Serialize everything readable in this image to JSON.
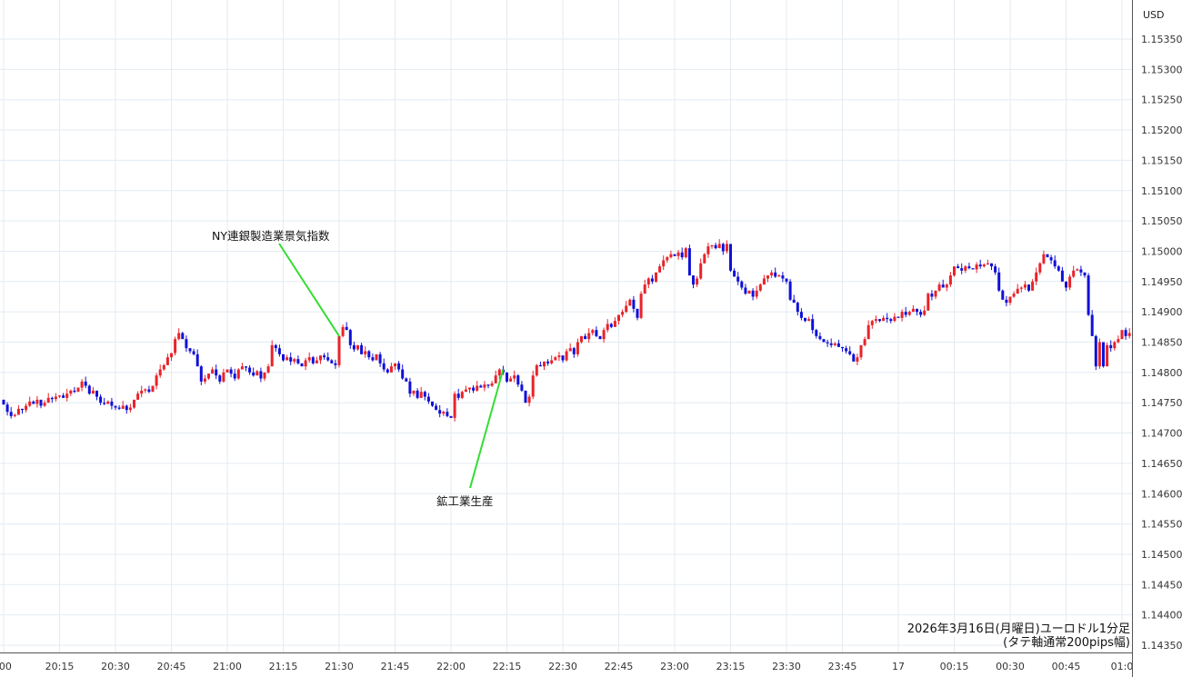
{
  "chart_data": {
    "type": "candlestick",
    "currency_label": "USD",
    "start_time": "20:00",
    "interval_minutes": 1,
    "ylim": [
      1.1435,
      1.1535
    ],
    "y_ticks": [
      "1.15350",
      "1.15300",
      "1.15250",
      "1.15200",
      "1.15150",
      "1.15100",
      "1.15050",
      "1.15000",
      "1.14950",
      "1.14900",
      "1.14850",
      "1.14800",
      "1.14750",
      "1.14700",
      "1.14650",
      "1.14600",
      "1.14550",
      "1.14500",
      "1.14450",
      "1.14400",
      "1.14350"
    ],
    "x_ticks": [
      ":00",
      "20:15",
      "20:30",
      "20:45",
      "21:00",
      "21:15",
      "21:30",
      "21:45",
      "22:00",
      "22:15",
      "22:30",
      "22:45",
      "23:00",
      "23:15",
      "23:30",
      "23:45",
      "17",
      "00:15",
      "00:30",
      "00:45",
      "01:0"
    ],
    "grid": true,
    "up_color": "#e8232a",
    "down_color": "#1010d8",
    "first_open": 1.14755,
    "closes": [
      1.14747,
      1.14735,
      1.14728,
      1.1473,
      1.1474,
      1.14738,
      1.14745,
      1.14752,
      1.14748,
      1.14755,
      1.14745,
      1.1475,
      1.14758,
      1.14756,
      1.1476,
      1.14762,
      1.14758,
      1.14765,
      1.1477,
      1.14768,
      1.14775,
      1.14785,
      1.14778,
      1.14765,
      1.1477,
      1.1476,
      1.1475,
      1.14748,
      1.14752,
      1.14745,
      1.14742,
      1.1474,
      1.14745,
      1.14738,
      1.14742,
      1.14755,
      1.14765,
      1.1477,
      1.14772,
      1.14768,
      1.14778,
      1.14795,
      1.14805,
      1.14812,
      1.14825,
      1.14832,
      1.14855,
      1.14865,
      1.14855,
      1.1484,
      1.14835,
      1.1483,
      1.1481,
      1.14785,
      1.1479,
      1.14798,
      1.14805,
      1.14795,
      1.14785,
      1.148,
      1.14805,
      1.14798,
      1.1479,
      1.14805,
      1.1481,
      1.14808,
      1.148,
      1.14795,
      1.14802,
      1.1479,
      1.148,
      1.1481,
      1.14845,
      1.1484,
      1.1483,
      1.1482,
      1.14825,
      1.14818,
      1.14822,
      1.14815,
      1.1481,
      1.1482,
      1.14825,
      1.14815,
      1.1482,
      1.14828,
      1.14825,
      1.1482,
      1.14815,
      1.14812,
      1.1486,
      1.14875,
      1.1487,
      1.14845,
      1.14838,
      1.14845,
      1.1483,
      1.14835,
      1.14825,
      1.1482,
      1.1483,
      1.14815,
      1.14805,
      1.148,
      1.1481,
      1.14815,
      1.14805,
      1.1479,
      1.14785,
      1.14765,
      1.1477,
      1.14758,
      1.14768,
      1.1476,
      1.14752,
      1.14745,
      1.14738,
      1.14732,
      1.14735,
      1.14728,
      1.14725,
      1.14765,
      1.14758,
      1.14768,
      1.14772,
      1.14775,
      1.1477,
      1.14778,
      1.14775,
      1.1478,
      1.14778,
      1.14782,
      1.14795,
      1.14805,
      1.148,
      1.14785,
      1.1479,
      1.14795,
      1.1478,
      1.1477,
      1.1475,
      1.1476,
      1.14795,
      1.14812,
      1.1481,
      1.14818,
      1.14815,
      1.1482,
      1.14825,
      1.14828,
      1.1482,
      1.14835,
      1.1484,
      1.1483,
      1.1485,
      1.1486,
      1.14855,
      1.14865,
      1.1487,
      1.1486,
      1.14855,
      1.1487,
      1.1488,
      1.14875,
      1.14885,
      1.14895,
      1.149,
      1.1491,
      1.1492,
      1.14905,
      1.1489,
      1.1493,
      1.14945,
      1.14955,
      1.1495,
      1.14965,
      1.14975,
      1.14985,
      1.1499,
      1.14995,
      1.14992,
      1.14998,
      1.1499,
      1.15005,
      1.1496,
      1.14945,
      1.14955,
      1.1498,
      1.14995,
      1.15008,
      1.1501,
      1.15005,
      1.15012,
      1.15,
      1.15012,
      1.14968,
      1.14958,
      1.1495,
      1.1494,
      1.1493,
      1.14935,
      1.14925,
      1.14935,
      1.14945,
      1.14955,
      1.1496,
      1.14965,
      1.14958,
      1.1496,
      1.14955,
      1.1495,
      1.1492,
      1.14915,
      1.149,
      1.1489,
      1.14885,
      1.14888,
      1.1487,
      1.1486,
      1.14855,
      1.1485,
      1.14848,
      1.14845,
      1.14848,
      1.14842,
      1.1484,
      1.14835,
      1.1483,
      1.14818,
      1.14825,
      1.14845,
      1.14855,
      1.14878,
      1.14885,
      1.14888,
      1.14885,
      1.1489,
      1.14888,
      1.14885,
      1.14892,
      1.1489,
      1.149,
      1.14895,
      1.149,
      1.14905,
      1.149,
      1.14895,
      1.14902,
      1.1493,
      1.14925,
      1.14935,
      1.14945,
      1.1494,
      1.14945,
      1.1496,
      1.14975,
      1.14972,
      1.14968,
      1.14975,
      1.14972,
      1.1497,
      1.14978,
      1.14975,
      1.14978,
      1.1498,
      1.14975,
      1.14965,
      1.14935,
      1.1492,
      1.14915,
      1.14925,
      1.1493,
      1.14938,
      1.1494,
      1.14945,
      1.14935,
      1.1495,
      1.14965,
      1.1498,
      1.14995,
      1.1499,
      1.14985,
      1.14975,
      1.14968,
      1.1495,
      1.1494,
      1.14958,
      1.14968,
      1.1497,
      1.14965,
      1.1496,
      1.14895,
      1.1486,
      1.1481,
      1.1485,
      1.1481,
      1.14845,
      1.1484,
      1.1485,
      1.14855,
      1.1487,
      1.1486,
      1.14865
    ],
    "annotations": [
      {
        "text": "NY連銀製造業景気指数",
        "time": "21:30",
        "price": 1.1486,
        "line_color": "#33dd33"
      },
      {
        "text": "鉱工業生産",
        "time": "22:14",
        "price": 1.14805,
        "line_color": "#33dd33"
      }
    ],
    "caption_line1": "2026年3月16日(月曜日)ユーロドル1分足",
    "caption_line2": "(タテ軸通常200pips幅)"
  }
}
